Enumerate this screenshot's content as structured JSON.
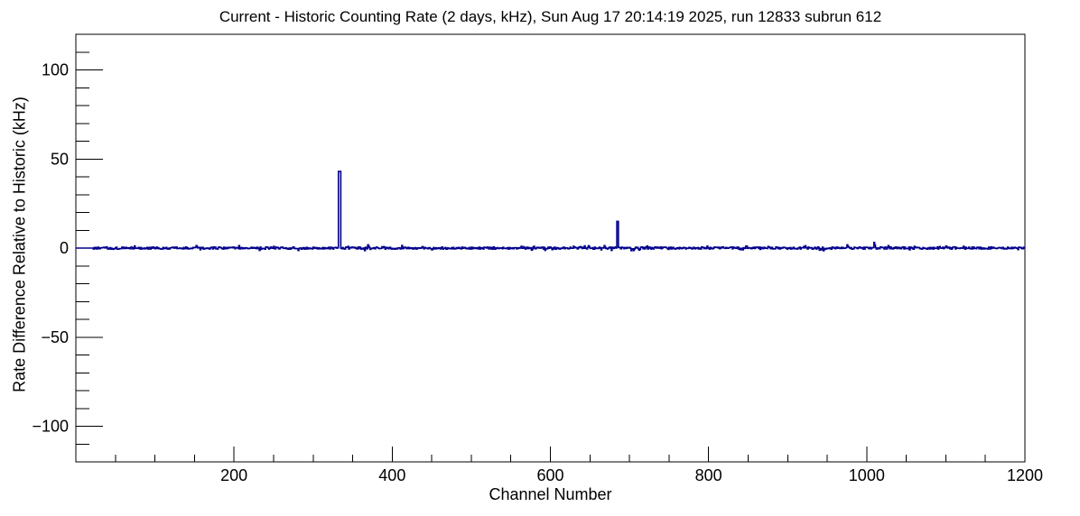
{
  "chart_data": {
    "type": "line",
    "title": "Current - Historic Counting Rate (2 days, kHz), Sun Aug 17 20:14:19 2025, run 12833 subrun 612",
    "xlabel": "Channel Number",
    "ylabel": "Rate Difference Relative to Historic (kHz)",
    "xlim": [
      0,
      1200
    ],
    "ylim": [
      -120,
      120
    ],
    "x_major_ticks": [
      200,
      400,
      600,
      800,
      1000,
      1200
    ],
    "x_minor_step": 50,
    "y_major_ticks": [
      -100,
      -50,
      0,
      50,
      100
    ],
    "y_minor_step": 10,
    "grid": false,
    "legend": false,
    "line_color": "#00008b",
    "frame_color": "#000000",
    "background_color": "#ffffff",
    "baseline_value": 0,
    "noise_amplitude_khz": 0.6,
    "flat_start_channels": 22,
    "noise_seed": 12833,
    "spikes": [
      {
        "channel": 333,
        "value": 43,
        "width": 3
      },
      {
        "channel": 685,
        "value": 15,
        "width": 2
      }
    ],
    "minor_bumps": [
      {
        "channel": 152,
        "value": 1.4
      },
      {
        "channel": 369,
        "value": 1.8
      },
      {
        "channel": 576,
        "value": -1.2
      },
      {
        "channel": 648,
        "value": 1.3
      },
      {
        "channel": 712,
        "value": -1.2
      },
      {
        "channel": 945,
        "value": -1.5
      },
      {
        "channel": 975,
        "value": 1.8
      },
      {
        "channel": 1009,
        "value": 3.2
      },
      {
        "channel": 1100,
        "value": 1.2
      }
    ]
  }
}
